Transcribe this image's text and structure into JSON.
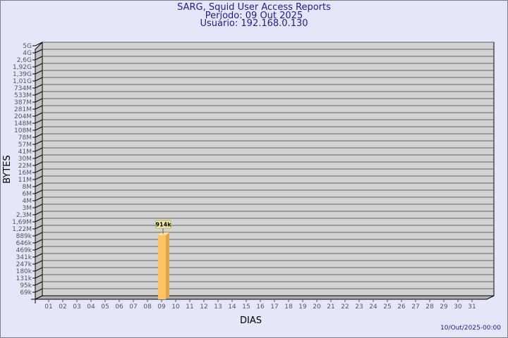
{
  "header": {
    "title": "SARG, Squid User Access Reports",
    "period": "Período: 09 Out 2025",
    "user": "Usuário: 192.168.0.130"
  },
  "footer": {
    "timestamp": "10/Out/2025-00:00"
  },
  "chart_data": {
    "type": "bar",
    "style": "3d",
    "xlabel": "DIAS",
    "ylabel": "BYTES",
    "y_scale": "log",
    "grid": true,
    "y_ticks": [
      "5G",
      "4G",
      "2,6G",
      "1,92G",
      "1,39G",
      "1,01G",
      "734M",
      "533M",
      "387M",
      "281M",
      "204M",
      "148M",
      "108M",
      "78M",
      "57M",
      "41M",
      "30M",
      "22M",
      "16M",
      "11M",
      "8M",
      "6M",
      "4M",
      "3M",
      "2,3M",
      "1,69M",
      "1,22M",
      "889k",
      "646k",
      "469k",
      "341k",
      "247k",
      "180k",
      "131k",
      "95k",
      "69k"
    ],
    "categories": [
      "01",
      "02",
      "03",
      "04",
      "05",
      "06",
      "07",
      "08",
      "09",
      "10",
      "11",
      "12",
      "13",
      "14",
      "15",
      "16",
      "17",
      "18",
      "19",
      "20",
      "21",
      "22",
      "23",
      "24",
      "25",
      "26",
      "27",
      "28",
      "29",
      "30",
      "31"
    ],
    "values": [
      null,
      null,
      null,
      null,
      null,
      null,
      null,
      null,
      914000,
      null,
      null,
      null,
      null,
      null,
      null,
      null,
      null,
      null,
      null,
      null,
      null,
      null,
      null,
      null,
      null,
      null,
      null,
      null,
      null,
      null,
      null
    ],
    "data_labels": {
      "09": "914k"
    },
    "colors": {
      "bar": "#fcc463",
      "bar_side": "#e0a54a",
      "bar_top": "#ffe09a",
      "plot": "#d3d3d3",
      "label_box": "#f5eeaa",
      "title": "#1c1c96"
    }
  }
}
